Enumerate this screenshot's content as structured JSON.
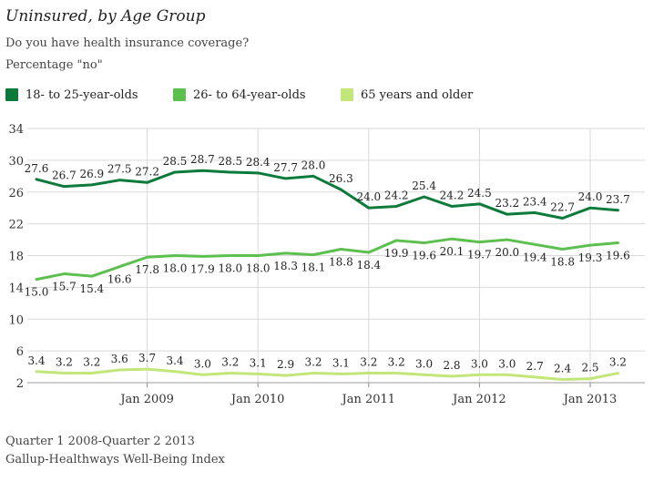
{
  "header": {
    "title": "Uninsured, by Age Group",
    "question": "Do you have health insurance coverage?",
    "measure": "Percentage \"no\""
  },
  "footer": {
    "period": "Quarter 1 2008-Quarter 2 2013",
    "source": "Gallup-Healthways Well-Being Index"
  },
  "chart_data": {
    "type": "line",
    "title": "Uninsured, by Age Group",
    "subtitle": "Do you have health insurance coverage?",
    "ylabel": "Percentage \"no\"",
    "xlabel": "",
    "ylim": [
      2,
      34
    ],
    "yticks": [
      2,
      6,
      10,
      14,
      18,
      22,
      26,
      30,
      34
    ],
    "x_tick_labels": [
      {
        "index": 4,
        "label": "Jan 2009"
      },
      {
        "index": 8,
        "label": "Jan 2010"
      },
      {
        "index": 12,
        "label": "Jan 2011"
      },
      {
        "index": 16,
        "label": "Jan 2012"
      },
      {
        "index": 20,
        "label": "Jan 2013"
      }
    ],
    "legend_position": "top",
    "grid": true,
    "series": [
      {
        "name": "18- to 25-year-olds",
        "color": "#0b7a3a",
        "values": [
          27.6,
          26.7,
          26.9,
          27.5,
          27.2,
          28.5,
          28.7,
          28.5,
          28.4,
          27.7,
          28.0,
          26.3,
          24.0,
          24.2,
          25.4,
          24.2,
          24.5,
          23.2,
          23.4,
          22.7,
          24.0,
          23.7
        ],
        "labels": [
          "27.6",
          "26.7",
          "26.9",
          "27.5",
          "27.2",
          "28.5",
          "28.7",
          "28.5",
          "28.4",
          "27.7",
          "28.0",
          "26.3",
          "24.0",
          "24.2",
          "25.4",
          "24.2",
          "24.5",
          "23.2",
          "23.4",
          "22.7",
          "24.0",
          "23.7"
        ]
      },
      {
        "name": "26- to 64-year-olds",
        "color": "#5cbf4f",
        "values": [
          15.0,
          15.7,
          15.4,
          16.6,
          17.8,
          18.0,
          17.9,
          18.0,
          18.0,
          18.3,
          18.1,
          18.8,
          18.4,
          19.9,
          19.6,
          20.1,
          19.7,
          20.0,
          19.4,
          18.8,
          19.3,
          19.6
        ],
        "labels": [
          "15.0",
          "15.7",
          "15.4",
          "16.6",
          "17.8",
          "18.0",
          "17.9",
          "18.0",
          "18.0",
          "18.3",
          "18.1",
          "18.8",
          "18.4",
          "19.9",
          "19.6",
          "20.1",
          "19.7",
          "20.0",
          "19.4",
          "18.8",
          "19.3",
          "19.6"
        ]
      },
      {
        "name": "65 years and older",
        "color": "#c3e67a",
        "values": [
          3.4,
          3.2,
          3.2,
          3.6,
          3.7,
          3.4,
          3.0,
          3.2,
          3.1,
          2.9,
          3.2,
          3.1,
          3.2,
          3.2,
          3.0,
          2.8,
          3.0,
          3.0,
          2.7,
          2.4,
          2.5,
          3.2
        ],
        "labels": [
          "3.4",
          "3.2",
          "3.2",
          "3.6",
          "3.7",
          "3.4",
          "3.0",
          "3.2",
          "3.1",
          "2.9",
          "3.2",
          "3.1",
          "3.2",
          "3.2",
          "3.0",
          "2.8",
          "3.0",
          "3.0",
          "2.7",
          "2.4",
          "2.5",
          "3.2"
        ]
      }
    ]
  }
}
